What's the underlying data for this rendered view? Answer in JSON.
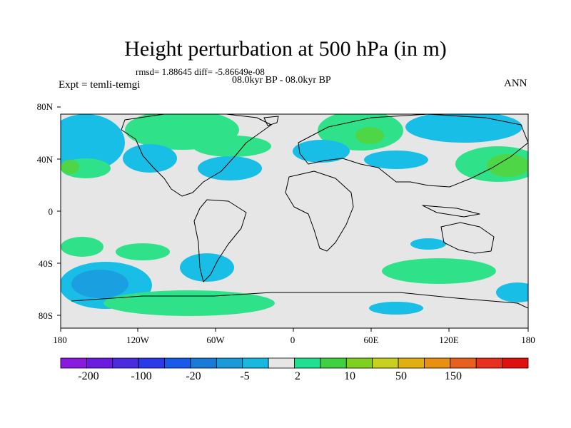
{
  "title": "Height perturbation at 500 hPa (in m)",
  "stats": "rmsd= 1.88645 diff= -5.86649e-08",
  "period": "08.0kyr BP - 08.0kyr BP",
  "experiment": "Expt = temli-temgi",
  "season": "ANN",
  "lat_ticks": [
    "80N",
    "40N",
    "0",
    "40S",
    "80S"
  ],
  "lon_ticks": [
    "180",
    "120W",
    "60W",
    "0",
    "60E",
    "120E",
    "180"
  ],
  "colorbar": {
    "labels": [
      "-200",
      "-100",
      "-20",
      "-5",
      "2",
      "10",
      "50",
      "150"
    ],
    "colors": [
      "#8a1ae0",
      "#6a1ce0",
      "#4a2be0",
      "#2a3ae8",
      "#1a5ae8",
      "#1a7ad8",
      "#1a9ad8",
      "#18b8e0",
      "#e6e6e6",
      "#20e090",
      "#40d040",
      "#80d020",
      "#c8d020",
      "#e0b010",
      "#e89010",
      "#e86020",
      "#e83020",
      "#e01010"
    ]
  },
  "field_colors": {
    "background": "#e6e6e6",
    "neg_light": "#18bee6",
    "neg_mid": "#1aa0e0",
    "pos_light": "#2fe28a",
    "pos_mid": "#4ed646"
  }
}
